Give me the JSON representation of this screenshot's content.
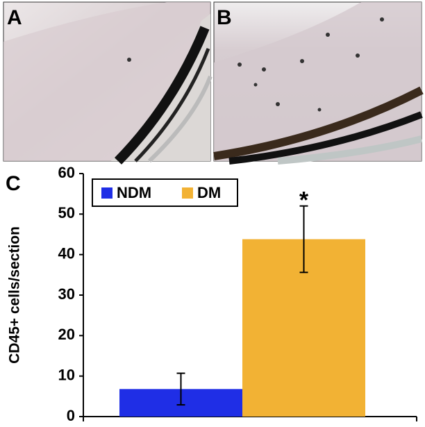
{
  "panels": [
    {
      "label": "A"
    },
    {
      "label": "B"
    }
  ],
  "chart_data": {
    "type": "bar",
    "panel_label": "C",
    "y_label": "CD45+ cells/section",
    "series": [
      {
        "name": "NDM",
        "color": "#1f2ee6",
        "values": [
          6.8
        ],
        "errors": [
          3.9
        ]
      },
      {
        "name": "DM",
        "color": "#f2b234",
        "values": [
          43.8
        ],
        "errors": [
          8.2
        ]
      }
    ],
    "annotations": [
      {
        "text": "*",
        "series": 1
      }
    ],
    "ylim": [
      0,
      60
    ],
    "yticks": [
      0,
      10,
      20,
      30,
      40,
      50,
      60
    ]
  }
}
